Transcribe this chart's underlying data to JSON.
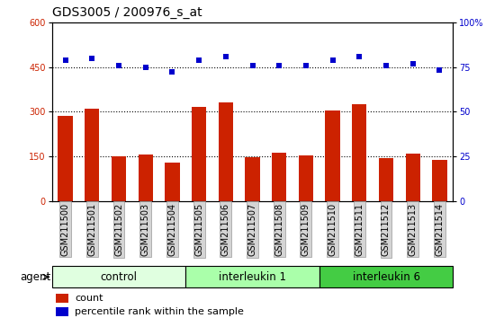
{
  "title": "GDS3005 / 200976_s_at",
  "samples": [
    "GSM211500",
    "GSM211501",
    "GSM211502",
    "GSM211503",
    "GSM211504",
    "GSM211505",
    "GSM211506",
    "GSM211507",
    "GSM211508",
    "GSM211509",
    "GSM211510",
    "GSM211511",
    "GSM211512",
    "GSM211513",
    "GSM211514"
  ],
  "counts": [
    285,
    310,
    150,
    155,
    130,
    315,
    330,
    148,
    163,
    152,
    305,
    325,
    145,
    160,
    138
  ],
  "percentiles": [
    79,
    80,
    76,
    75,
    72,
    79,
    81,
    76,
    76,
    76,
    79,
    81,
    76,
    77,
    73
  ],
  "groups": [
    {
      "label": "control",
      "start": 0,
      "end": 5,
      "color": "#e0ffe0"
    },
    {
      "label": "interleukin 1",
      "start": 5,
      "end": 10,
      "color": "#aaffaa"
    },
    {
      "label": "interleukin 6",
      "start": 10,
      "end": 15,
      "color": "#44cc44"
    }
  ],
  "bar_color": "#cc2200",
  "dot_color": "#0000cc",
  "left_ylim": [
    0,
    600
  ],
  "right_ylim": [
    0,
    100
  ],
  "left_yticks": [
    0,
    150,
    300,
    450,
    600
  ],
  "right_yticks": [
    0,
    25,
    50,
    75,
    100
  ],
  "grid_values": [
    150,
    300,
    450
  ],
  "bar_width": 0.55,
  "dot_marker": "s",
  "dot_size": 25,
  "title_fontsize": 10,
  "tick_fontsize": 7,
  "legend_fontsize": 8,
  "group_label_fontsize": 8.5,
  "agent_fontsize": 8.5
}
